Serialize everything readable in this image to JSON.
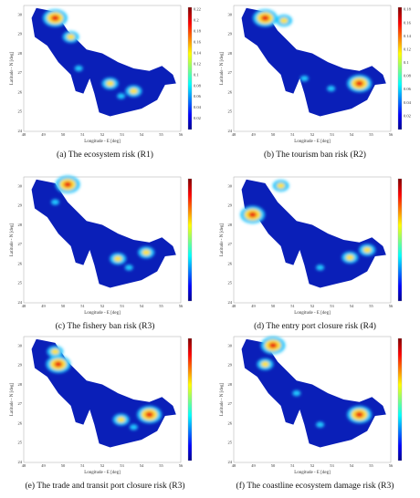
{
  "panels": [
    {
      "caption": "(a) The ecosystem risk (R1)",
      "x_label": "Longitude - E [deg]",
      "y_label": "Latitude - N [deg]",
      "x_ticks": [
        48,
        49,
        50,
        51,
        52,
        53,
        54,
        55,
        56
      ],
      "y_ticks": [
        24,
        25,
        26,
        27,
        28,
        29,
        30
      ],
      "colorbar_ticks": [
        0.02,
        0.04,
        0.06,
        0.08,
        0.1,
        0.12,
        0.14,
        0.16,
        0.18,
        0.2,
        0.22
      ]
    },
    {
      "caption": "(b) The tourism ban risk (R2)",
      "x_label": "Longitude - E [deg]",
      "y_label": "Latitude - N [deg]",
      "x_ticks": [
        48,
        49,
        50,
        51,
        52,
        53,
        54,
        55,
        56
      ],
      "y_ticks": [
        24,
        25,
        26,
        27,
        28,
        29,
        30
      ],
      "colorbar_ticks": [
        0.02,
        0.04,
        0.06,
        0.08,
        0.1,
        0.12,
        0.14,
        0.16,
        0.18
      ]
    },
    {
      "caption": "(c) The fishery ban risk (R3)",
      "x_label": "Longitude - E [deg]",
      "y_label": "Latitude - N [deg]",
      "x_ticks": [
        48,
        49,
        50,
        51,
        52,
        53,
        54,
        55,
        56
      ],
      "y_ticks": [
        24,
        25,
        26,
        27,
        28,
        29,
        30
      ]
    },
    {
      "caption": "(d) The entry port closure risk (R4)",
      "x_label": "Longitude - E [deg]",
      "y_label": "Latitude - N [deg]",
      "x_ticks": [
        48,
        49,
        50,
        51,
        52,
        53,
        54,
        55,
        56
      ],
      "y_ticks": [
        24,
        25,
        26,
        27,
        28,
        29,
        30
      ]
    },
    {
      "caption": "(e) The trade and transit port closure risk (R3)",
      "x_label": "Longitude - E [deg]",
      "y_label": "Latitude - N [deg]",
      "x_ticks": [
        48,
        49,
        50,
        51,
        52,
        53,
        54,
        55,
        56
      ],
      "y_ticks": [
        24,
        25,
        26,
        27,
        28,
        29,
        30
      ]
    },
    {
      "caption": "(f) The coastline ecosystem damage risk (R3)",
      "x_label": "Longitude - E [deg]",
      "y_label": "Latitude - N [deg]",
      "x_ticks": [
        48,
        49,
        50,
        51,
        52,
        53,
        54,
        55,
        56
      ],
      "y_ticks": [
        24,
        25,
        26,
        27,
        28,
        29,
        30
      ]
    }
  ]
}
